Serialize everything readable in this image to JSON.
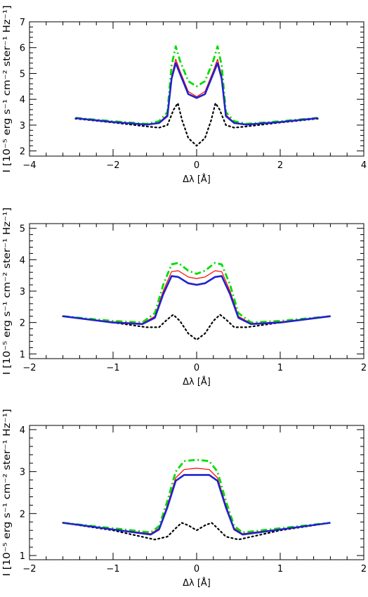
{
  "chart_data": [
    {
      "type": "line",
      "xlabel": "Δλ [Å]",
      "ylabel": "I [10⁻⁵ erg s⁻¹ cm⁻² ster⁻¹ Hz⁻¹]",
      "xlim": [
        -4,
        4
      ],
      "ylim": [
        1.8,
        7.0
      ],
      "xticks": [
        -4,
        -2,
        0,
        2,
        4
      ],
      "yticks": [
        2,
        3,
        4,
        5,
        6,
        7
      ],
      "grid": false,
      "series": [
        {
          "style": "dotted",
          "color": "#000000",
          "x": [
            -2.9,
            -2.0,
            -1.2,
            -0.9,
            -0.7,
            -0.55,
            -0.45,
            -0.35,
            -0.2,
            0,
            0.2,
            0.35,
            0.45,
            0.55,
            0.7,
            0.9,
            1.2,
            2.0,
            2.9
          ],
          "y": [
            3.25,
            3.1,
            2.95,
            2.9,
            3.0,
            3.6,
            3.85,
            3.2,
            2.5,
            2.2,
            2.5,
            3.2,
            3.85,
            3.6,
            3.0,
            2.9,
            2.95,
            3.1,
            3.25
          ]
        },
        {
          "style": "dashdot",
          "color": "#00dd00",
          "x": [
            -2.9,
            -2.0,
            -1.2,
            -0.9,
            -0.7,
            -0.6,
            -0.5,
            -0.4,
            -0.2,
            0,
            0.2,
            0.4,
            0.5,
            0.6,
            0.7,
            0.9,
            1.2,
            2.0,
            2.9
          ],
          "y": [
            3.28,
            3.15,
            3.05,
            3.15,
            3.5,
            5.3,
            6.05,
            5.5,
            4.7,
            4.5,
            4.7,
            5.5,
            6.05,
            5.3,
            3.5,
            3.15,
            3.05,
            3.15,
            3.28
          ]
        },
        {
          "style": "solid-thin",
          "color": "#ff0000",
          "x": [
            -2.9,
            -2.0,
            -1.2,
            -0.9,
            -0.7,
            -0.6,
            -0.5,
            -0.4,
            -0.2,
            0,
            0.2,
            0.4,
            0.5,
            0.6,
            0.7,
            0.9,
            1.2,
            2.0,
            2.9
          ],
          "y": [
            3.27,
            3.13,
            3.03,
            3.1,
            3.4,
            4.9,
            5.55,
            5.1,
            4.3,
            4.1,
            4.3,
            5.1,
            5.55,
            4.9,
            3.4,
            3.1,
            3.03,
            3.13,
            3.27
          ]
        },
        {
          "style": "solid-thick",
          "color": "#2222cc",
          "x": [
            -2.9,
            -2.0,
            -1.2,
            -0.9,
            -0.7,
            -0.6,
            -0.5,
            -0.4,
            -0.2,
            0,
            0.2,
            0.4,
            0.5,
            0.6,
            0.7,
            0.9,
            1.2,
            2.0,
            2.9
          ],
          "y": [
            3.27,
            3.12,
            3.02,
            3.08,
            3.35,
            4.8,
            5.4,
            5.0,
            4.2,
            4.05,
            4.2,
            5.0,
            5.4,
            4.8,
            3.35,
            3.08,
            3.02,
            3.12,
            3.27
          ]
        }
      ]
    },
    {
      "type": "line",
      "xlabel": "Δλ [Å]",
      "ylabel": "I [10⁻⁵ erg s⁻¹ cm⁻² ster⁻¹ Hz⁻¹]",
      "xlim": [
        -2,
        2
      ],
      "ylim": [
        0.85,
        5.15
      ],
      "xticks": [
        -2,
        -1,
        0,
        1,
        2
      ],
      "yticks": [
        1,
        2,
        3,
        4,
        5
      ],
      "grid": false,
      "series": [
        {
          "style": "dotted",
          "color": "#000000",
          "x": [
            -1.6,
            -1.0,
            -0.6,
            -0.45,
            -0.35,
            -0.28,
            -0.2,
            -0.1,
            0,
            0.1,
            0.2,
            0.28,
            0.35,
            0.45,
            0.6,
            1.0,
            1.6
          ],
          "y": [
            2.2,
            2.0,
            1.85,
            1.85,
            2.1,
            2.25,
            2.05,
            1.65,
            1.45,
            1.65,
            2.05,
            2.25,
            2.1,
            1.85,
            1.85,
            2.0,
            2.2
          ]
        },
        {
          "style": "dashdot",
          "color": "#00dd00",
          "x": [
            -1.6,
            -1.0,
            -0.65,
            -0.5,
            -0.4,
            -0.3,
            -0.22,
            -0.1,
            0,
            0.1,
            0.22,
            0.3,
            0.4,
            0.5,
            0.65,
            1.0,
            1.6
          ],
          "y": [
            2.2,
            2.05,
            2.0,
            2.3,
            3.2,
            3.85,
            3.9,
            3.65,
            3.55,
            3.65,
            3.9,
            3.85,
            3.2,
            2.3,
            2.0,
            2.05,
            2.2
          ]
        },
        {
          "style": "solid-thin",
          "color": "#ff0000",
          "x": [
            -1.6,
            -1.0,
            -0.65,
            -0.5,
            -0.4,
            -0.3,
            -0.22,
            -0.1,
            0,
            0.1,
            0.22,
            0.3,
            0.4,
            0.5,
            0.65,
            1.0,
            1.6
          ],
          "y": [
            2.2,
            2.02,
            1.97,
            2.2,
            3.0,
            3.62,
            3.65,
            3.45,
            3.4,
            3.45,
            3.65,
            3.62,
            3.0,
            2.2,
            1.97,
            2.02,
            2.2
          ]
        },
        {
          "style": "solid-thick",
          "color": "#2222cc",
          "x": [
            -1.6,
            -1.0,
            -0.65,
            -0.5,
            -0.4,
            -0.3,
            -0.22,
            -0.1,
            0,
            0.1,
            0.22,
            0.3,
            0.4,
            0.5,
            0.65,
            1.0,
            1.6
          ],
          "y": [
            2.2,
            2.0,
            1.95,
            2.15,
            2.9,
            3.48,
            3.45,
            3.25,
            3.2,
            3.25,
            3.45,
            3.48,
            2.9,
            2.15,
            1.95,
            2.0,
            2.2
          ]
        }
      ]
    },
    {
      "type": "line",
      "xlabel": "Δλ [Å]",
      "ylabel": "I [10⁻⁵ erg s⁻¹ cm⁻² ster⁻¹ Hz⁻¹]",
      "xlim": [
        -2,
        2
      ],
      "ylim": [
        0.9,
        4.1
      ],
      "xticks": [
        -2,
        -1,
        0,
        1,
        2
      ],
      "yticks": [
        1,
        2,
        3,
        4
      ],
      "grid": false,
      "series": [
        {
          "style": "dotted",
          "color": "#000000",
          "x": [
            -1.6,
            -1.0,
            -0.5,
            -0.35,
            -0.25,
            -0.18,
            -0.1,
            0,
            0.1,
            0.18,
            0.25,
            0.35,
            0.5,
            1.0,
            1.6
          ],
          "y": [
            1.78,
            1.6,
            1.38,
            1.45,
            1.65,
            1.78,
            1.72,
            1.6,
            1.72,
            1.78,
            1.65,
            1.45,
            1.38,
            1.6,
            1.78
          ]
        },
        {
          "style": "dashdot",
          "color": "#00dd00",
          "x": [
            -1.6,
            -1.0,
            -0.55,
            -0.45,
            -0.35,
            -0.25,
            -0.15,
            0,
            0.15,
            0.25,
            0.35,
            0.45,
            0.55,
            1.0,
            1.6
          ],
          "y": [
            1.78,
            1.65,
            1.55,
            1.7,
            2.3,
            3.0,
            3.25,
            3.28,
            3.25,
            3.0,
            2.3,
            1.7,
            1.55,
            1.65,
            1.78
          ]
        },
        {
          "style": "solid-thin",
          "color": "#ff0000",
          "x": [
            -1.6,
            -1.0,
            -0.55,
            -0.45,
            -0.35,
            -0.25,
            -0.15,
            0,
            0.15,
            0.25,
            0.35,
            0.45,
            0.55,
            1.0,
            1.6
          ],
          "y": [
            1.78,
            1.63,
            1.52,
            1.65,
            2.2,
            2.85,
            3.05,
            3.08,
            3.05,
            2.85,
            2.2,
            1.65,
            1.52,
            1.63,
            1.78
          ]
        },
        {
          "style": "solid-thick",
          "color": "#2222cc",
          "x": [
            -1.6,
            -1.0,
            -0.55,
            -0.45,
            -0.35,
            -0.25,
            -0.15,
            0,
            0.15,
            0.25,
            0.35,
            0.45,
            0.55,
            1.0,
            1.6
          ],
          "y": [
            1.78,
            1.62,
            1.5,
            1.62,
            2.15,
            2.78,
            2.92,
            2.92,
            2.92,
            2.78,
            2.15,
            1.62,
            1.5,
            1.62,
            1.78
          ]
        }
      ]
    }
  ]
}
